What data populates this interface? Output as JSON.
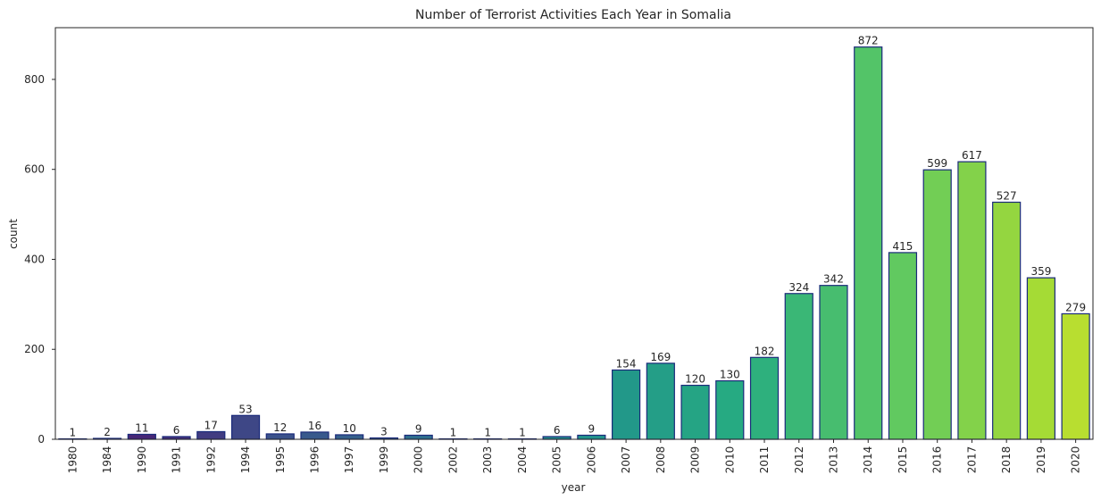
{
  "chart_data": {
    "type": "bar",
    "title": "Number of Terrorist Activities Each Year in Somalia",
    "xlabel": "year",
    "ylabel": "count",
    "ylim": [
      0,
      915
    ],
    "yticks": [
      0,
      200,
      400,
      600,
      800
    ],
    "grid": false,
    "legend": "none",
    "bar_edge_color": "#1a2a7a",
    "palette": "viridis",
    "categories": [
      "1980",
      "1984",
      "1990",
      "1991",
      "1992",
      "1994",
      "1995",
      "1996",
      "1997",
      "1999",
      "2000",
      "2002",
      "2003",
      "2004",
      "2005",
      "2006",
      "2007",
      "2008",
      "2009",
      "2010",
      "2011",
      "2012",
      "2013",
      "2014",
      "2015",
      "2016",
      "2017",
      "2018",
      "2019",
      "2020"
    ],
    "values": [
      1,
      2,
      11,
      6,
      17,
      53,
      12,
      16,
      10,
      3,
      9,
      1,
      1,
      1,
      6,
      9,
      154,
      169,
      120,
      130,
      182,
      324,
      342,
      872,
      415,
      599,
      617,
      527,
      359,
      279
    ]
  }
}
